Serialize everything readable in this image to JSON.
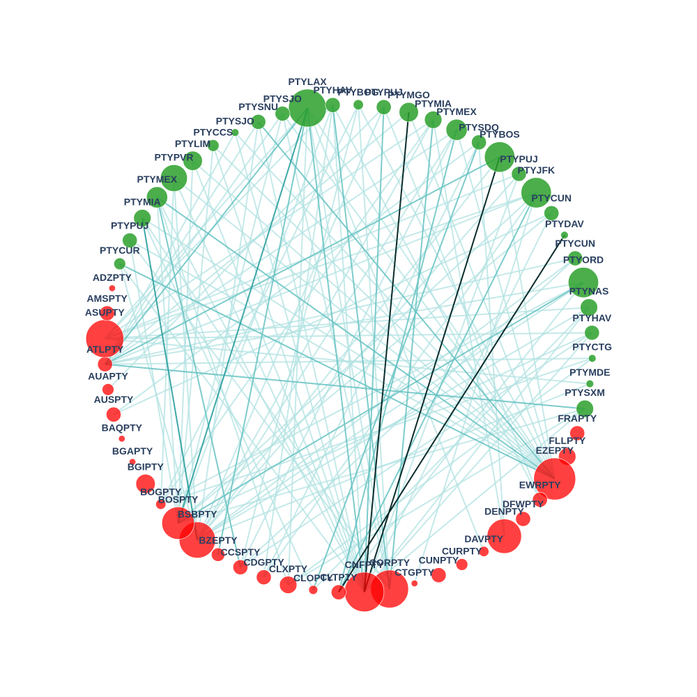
{
  "colors": {
    "origin": "#2ca02c",
    "destination": "#ff0000",
    "edge_light": "#b2e2e2",
    "edge_mid": "#66c2c2",
    "edge_dark": "#2a9d9d",
    "edge_black": "#0b2b2b",
    "label": "#2a3f5f"
  },
  "nodes": [
    {
      "id": "PTYLAX",
      "group": "origin",
      "weight": 20
    },
    {
      "id": "PTYHAV",
      "group": "origin",
      "weight": 2
    },
    {
      "id": "PTYBOG",
      "group": "origin",
      "weight": 0.6
    },
    {
      "id": "PTYPUJ",
      "group": "origin",
      "weight": 2
    },
    {
      "id": "PTYMGO",
      "group": "origin",
      "weight": 4
    },
    {
      "id": "PTYMIA",
      "group": "origin",
      "weight": 3
    },
    {
      "id": "PTYMEX",
      "group": "origin",
      "weight": 5
    },
    {
      "id": "PTYSDQ",
      "group": "origin",
      "weight": 2
    },
    {
      "id": "PTYBOS",
      "group": "origin",
      "weight": 12
    },
    {
      "id": "PTYPUJ",
      "group": "origin",
      "weight": 2
    },
    {
      "id": "PTYJFK",
      "group": "origin",
      "weight": 12
    },
    {
      "id": "PTYCUN",
      "group": "origin",
      "weight": 2
    },
    {
      "id": "PTYDAV",
      "group": "origin",
      "weight": 0.2
    },
    {
      "id": "PTYCUN",
      "group": "origin",
      "weight": 2
    },
    {
      "id": "PTYORD",
      "group": "origin",
      "weight": 12
    },
    {
      "id": "PTYNAS",
      "group": "origin",
      "weight": 3
    },
    {
      "id": "PTYHAV",
      "group": "origin",
      "weight": 2
    },
    {
      "id": "PTYCTG",
      "group": "origin",
      "weight": 0.2
    },
    {
      "id": "PTYMDE",
      "group": "origin",
      "weight": 0.2
    },
    {
      "id": "PTYSXM",
      "group": "origin",
      "weight": 3
    },
    {
      "id": "FRAPTY",
      "group": "destination",
      "weight": 2
    },
    {
      "id": "FLLPTY",
      "group": "destination",
      "weight": 3
    },
    {
      "id": "EZEPTY",
      "group": "destination",
      "weight": 25
    },
    {
      "id": "EWRPTY",
      "group": "destination",
      "weight": 2
    },
    {
      "id": "DFWPTY",
      "group": "destination",
      "weight": 2
    },
    {
      "id": "DENPTY",
      "group": "destination",
      "weight": 16
    },
    {
      "id": "DAVPTY",
      "group": "destination",
      "weight": 0.6
    },
    {
      "id": "CURPTY",
      "group": "destination",
      "weight": 1
    },
    {
      "id": "CUNPTY",
      "group": "destination",
      "weight": 2
    },
    {
      "id": "CTGPTY",
      "group": "destination",
      "weight": 0.1
    },
    {
      "id": "CORPTY",
      "group": "destination",
      "weight": 20
    },
    {
      "id": "CNFPTY",
      "group": "destination",
      "weight": 22
    },
    {
      "id": "CLTPTY",
      "group": "destination",
      "weight": 2
    },
    {
      "id": "CLOPTY",
      "group": "destination",
      "weight": 0.4
    },
    {
      "id": "CLXPTY",
      "group": "destination",
      "weight": 3
    },
    {
      "id": "CDGPTY",
      "group": "destination",
      "weight": 2
    },
    {
      "id": "CCSPTY",
      "group": "destination",
      "weight": 2
    },
    {
      "id": "BZEPTY",
      "group": "destination",
      "weight": 1.5
    },
    {
      "id": "BSBPTY",
      "group": "destination",
      "weight": 18
    },
    {
      "id": "BOSPTY",
      "group": "destination",
      "weight": 14
    },
    {
      "id": "BOGPTY",
      "group": "destination",
      "weight": 0.6
    },
    {
      "id": "BGIPTY",
      "group": "destination",
      "weight": 4
    },
    {
      "id": "BGAPTY",
      "group": "destination",
      "weight": 0.1
    },
    {
      "id": "BAQPTY",
      "group": "destination",
      "weight": 0.1
    },
    {
      "id": "AUSPTY",
      "group": "destination",
      "weight": 2
    },
    {
      "id": "AUAPTY",
      "group": "destination",
      "weight": 1
    },
    {
      "id": "ATLPTY",
      "group": "destination",
      "weight": 2
    },
    {
      "id": "ASUPTY",
      "group": "destination",
      "weight": 20
    },
    {
      "id": "AMSPTY",
      "group": "destination",
      "weight": 2
    },
    {
      "id": "ADZPTY",
      "group": "destination",
      "weight": 0.1
    },
    {
      "id": "PTYCUR",
      "group": "origin",
      "weight": 1
    },
    {
      "id": "PTYPUJ",
      "group": "origin",
      "weight": 2
    },
    {
      "id": "PTYMIA",
      "group": "origin",
      "weight": 3
    },
    {
      "id": "PTYMEX",
      "group": "origin",
      "weight": 5
    },
    {
      "id": "PTYPVR",
      "group": "origin",
      "weight": 9
    },
    {
      "id": "PTYLIM",
      "group": "origin",
      "weight": 4
    },
    {
      "id": "PTYCCS",
      "group": "origin",
      "weight": 1
    },
    {
      "id": "PTYSJO",
      "group": "origin",
      "weight": 0.2
    },
    {
      "id": "PTYSNU",
      "group": "origin",
      "weight": 2
    },
    {
      "id": "PTYSJO",
      "group": "origin",
      "weight": 2
    }
  ],
  "edges": [
    [
      4,
      31,
      "black"
    ],
    [
      8,
      31,
      "black"
    ],
    [
      12,
      32,
      "black"
    ],
    [
      0,
      39,
      "dark"
    ],
    [
      0,
      37,
      "mid"
    ],
    [
      0,
      31,
      "mid"
    ],
    [
      0,
      46,
      "mid"
    ],
    [
      0,
      26,
      "light"
    ],
    [
      0,
      22,
      "light"
    ],
    [
      0,
      30,
      "light"
    ],
    [
      0,
      34,
      "light"
    ],
    [
      1,
      35,
      "light"
    ],
    [
      1,
      30,
      "mid"
    ],
    [
      1,
      47,
      "light"
    ],
    [
      1,
      23,
      "light"
    ],
    [
      1,
      39,
      "light"
    ],
    [
      2,
      40,
      "light"
    ],
    [
      2,
      36,
      "light"
    ],
    [
      2,
      30,
      "light"
    ],
    [
      3,
      23,
      "light"
    ],
    [
      3,
      38,
      "light"
    ],
    [
      3,
      45,
      "light"
    ],
    [
      3,
      31,
      "mid"
    ],
    [
      5,
      30,
      "mid"
    ],
    [
      5,
      38,
      "light"
    ],
    [
      5,
      47,
      "light"
    ],
    [
      5,
      25,
      "light"
    ],
    [
      5,
      40,
      "light"
    ],
    [
      6,
      32,
      "mid"
    ],
    [
      6,
      22,
      "light"
    ],
    [
      6,
      38,
      "light"
    ],
    [
      6,
      46,
      "light"
    ],
    [
      6,
      36,
      "light"
    ],
    [
      7,
      33,
      "mid"
    ],
    [
      7,
      44,
      "light"
    ],
    [
      7,
      35,
      "light"
    ],
    [
      7,
      25,
      "light"
    ],
    [
      9,
      38,
      "light"
    ],
    [
      9,
      31,
      "light"
    ],
    [
      9,
      47,
      "light"
    ],
    [
      10,
      32,
      "mid"
    ],
    [
      10,
      39,
      "light"
    ],
    [
      10,
      46,
      "light"
    ],
    [
      10,
      29,
      "light"
    ],
    [
      10,
      35,
      "light"
    ],
    [
      11,
      31,
      "light"
    ],
    [
      11,
      39,
      "light"
    ],
    [
      11,
      44,
      "light"
    ],
    [
      13,
      36,
      "light"
    ],
    [
      13,
      46,
      "light"
    ],
    [
      13,
      38,
      "light"
    ],
    [
      14,
      39,
      "mid"
    ],
    [
      14,
      46,
      "light"
    ],
    [
      14,
      32,
      "light"
    ],
    [
      14,
      40,
      "light"
    ],
    [
      15,
      38,
      "light"
    ],
    [
      15,
      47,
      "light"
    ],
    [
      15,
      33,
      "light"
    ],
    [
      16,
      47,
      "light"
    ],
    [
      16,
      39,
      "light"
    ],
    [
      16,
      31,
      "light"
    ],
    [
      17,
      46,
      "light"
    ],
    [
      17,
      34,
      "light"
    ],
    [
      17,
      40,
      "light"
    ],
    [
      18,
      47,
      "light"
    ],
    [
      18,
      38,
      "light"
    ],
    [
      19,
      46,
      "mid"
    ],
    [
      19,
      34,
      "light"
    ],
    [
      19,
      39,
      "light"
    ],
    [
      19,
      31,
      "light"
    ],
    [
      50,
      22,
      "mid"
    ],
    [
      50,
      31,
      "light"
    ],
    [
      50,
      38,
      "light"
    ],
    [
      51,
      22,
      "light"
    ],
    [
      51,
      30,
      "light"
    ],
    [
      51,
      39,
      "light"
    ],
    [
      52,
      38,
      "dark"
    ],
    [
      52,
      30,
      "light"
    ],
    [
      52,
      22,
      "light"
    ],
    [
      52,
      33,
      "light"
    ],
    [
      53,
      22,
      "mid"
    ],
    [
      53,
      31,
      "light"
    ],
    [
      53,
      36,
      "mid"
    ],
    [
      53,
      39,
      "light"
    ],
    [
      53,
      34,
      "light"
    ],
    [
      54,
      38,
      "light"
    ],
    [
      54,
      22,
      "light"
    ],
    [
      54,
      31,
      "light"
    ],
    [
      54,
      40,
      "light"
    ],
    [
      55,
      22,
      "light"
    ],
    [
      55,
      31,
      "light"
    ],
    [
      55,
      39,
      "light"
    ],
    [
      56,
      39,
      "light"
    ],
    [
      56,
      31,
      "light"
    ],
    [
      56,
      22,
      "light"
    ],
    [
      57,
      31,
      "light"
    ],
    [
      57,
      46,
      "light"
    ],
    [
      57,
      22,
      "light"
    ],
    [
      58,
      22,
      "mid"
    ],
    [
      58,
      31,
      "light"
    ],
    [
      58,
      38,
      "light"
    ],
    [
      58,
      46,
      "light"
    ],
    [
      59,
      30,
      "light"
    ],
    [
      59,
      39,
      "light"
    ],
    [
      59,
      46,
      "light"
    ],
    [
      59,
      22,
      "light"
    ],
    [
      0,
      47,
      "light"
    ],
    [
      8,
      46,
      "mid"
    ],
    [
      8,
      38,
      "light"
    ],
    [
      8,
      22,
      "light"
    ],
    [
      10,
      47,
      "light"
    ],
    [
      14,
      38,
      "light"
    ],
    [
      4,
      46,
      "light"
    ],
    [
      4,
      22,
      "light"
    ],
    [
      2,
      22,
      "light"
    ],
    [
      1,
      31,
      "light"
    ],
    [
      16,
      36,
      "light"
    ],
    [
      15,
      31,
      "light"
    ]
  ]
}
